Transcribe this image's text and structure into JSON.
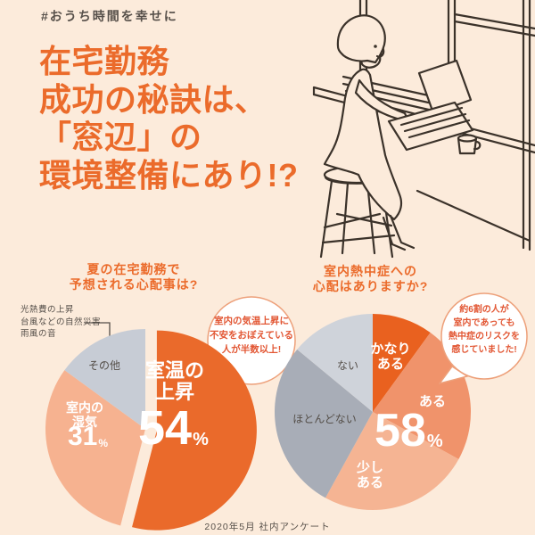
{
  "page": {
    "hashtag": "#おうち時間を幸せに",
    "headline_lines": [
      "在宅勤務",
      "成功の秘訣は、",
      "「窓辺」の",
      "環境整備にあり!?"
    ],
    "footer_note": "2020年5月 社内アンケート",
    "colors": {
      "background": "#fcebdb",
      "accent_orange": "#eb6b2b",
      "text_dark": "#57504a",
      "callout_text": "#e25633"
    }
  },
  "illustration": {
    "name": "woman-working-on-laptop-by-window"
  },
  "chart_data": [
    {
      "type": "pie",
      "title_lines": [
        "夏の在宅勤務で",
        "予想される心配事は?"
      ],
      "slices": [
        {
          "label": "室温の上昇",
          "label_lines": [
            "室温の",
            "上昇"
          ],
          "value": 54,
          "display_value": "54",
          "unit": "%",
          "color": "#ea6a2b",
          "exploded": true
        },
        {
          "label": "室内の湿気",
          "label_lines": [
            "室内の",
            "湿気"
          ],
          "value": 31,
          "display_value": "31",
          "unit": "%",
          "color": "#f6b290"
        },
        {
          "label": "その他",
          "value": 15,
          "color": "#c7ccd5",
          "breakdown": [
            "光熱費の上昇",
            "台風などの自然災害",
            "雨風の音"
          ]
        }
      ],
      "callout_lines": [
        "室内の気温上昇に",
        "不安をおぼえている",
        "人が半数以上!"
      ]
    },
    {
      "type": "pie",
      "title_lines": [
        "室内熱中症への",
        "心配はありますか?"
      ],
      "slices": [
        {
          "label": "かなりある",
          "label_lines": [
            "かなり",
            "ある"
          ],
          "value": 10,
          "color": "#e9611f"
        },
        {
          "label": "ある",
          "value": 23,
          "color": "#f0936b"
        },
        {
          "label": "少しある",
          "label_lines": [
            "少し",
            "ある"
          ],
          "value": 25,
          "color": "#f5b493"
        },
        {
          "label": "ほとんどない",
          "value": 28,
          "color": "#a8adb7"
        },
        {
          "label": "ない",
          "value": 14,
          "color": "#cfd3da"
        }
      ],
      "highlight": {
        "display_value": "58",
        "unit": "%"
      },
      "callout_lines": [
        "約6割の人が",
        "室内であっても",
        "熱中症のリスクを",
        "感じていました!"
      ]
    }
  ]
}
